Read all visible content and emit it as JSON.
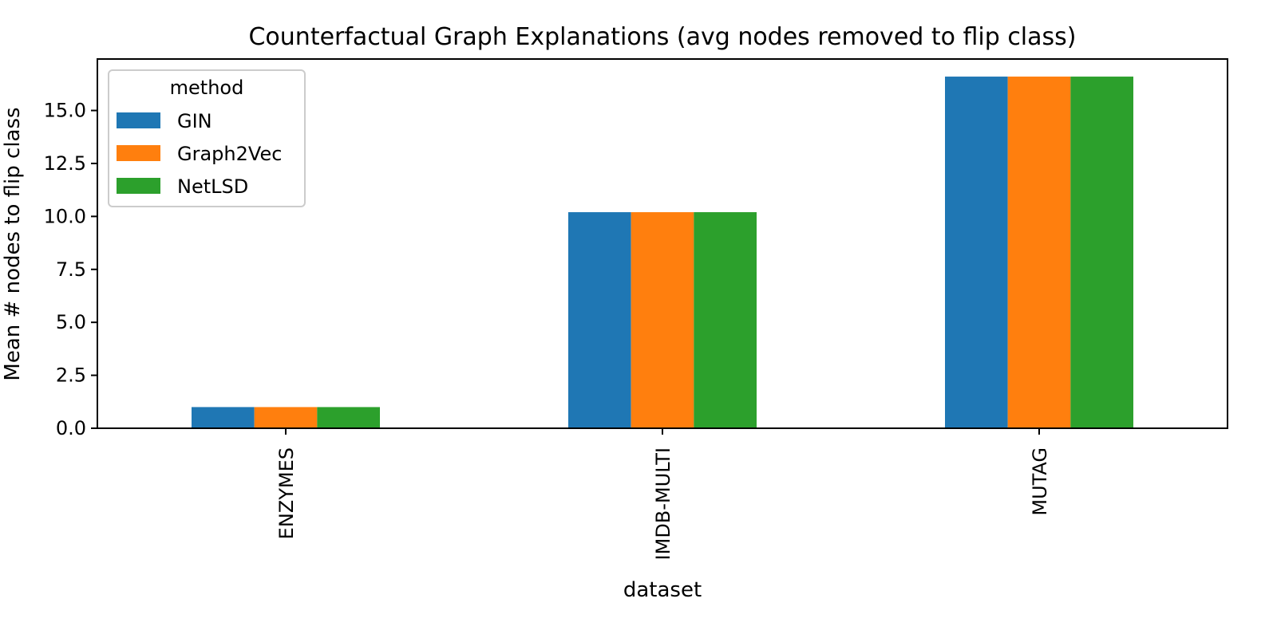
{
  "chart_data": {
    "type": "bar",
    "title": "Counterfactual Graph Explanations (avg nodes removed to flip class)",
    "xlabel": "dataset",
    "ylabel": "Mean # nodes to flip class",
    "categories": [
      "ENZYMES",
      "IMDB-MULTI",
      "MUTAG"
    ],
    "series": [
      {
        "name": "GIN",
        "color": "#1f77b4",
        "values": [
          1.0,
          10.2,
          16.6
        ]
      },
      {
        "name": "Graph2Vec",
        "color": "#ff7f0e",
        "values": [
          1.0,
          10.2,
          16.6
        ]
      },
      {
        "name": "NetLSD",
        "color": "#2ca02c",
        "values": [
          1.0,
          10.2,
          16.6
        ]
      }
    ],
    "ylim": [
      0,
      17.43
    ],
    "yticks": [
      0.0,
      2.5,
      5.0,
      7.5,
      10.0,
      12.5,
      15.0
    ],
    "ytick_labels": [
      "0.0",
      "2.5",
      "5.0",
      "7.5",
      "10.0",
      "12.5",
      "15.0"
    ],
    "legend": {
      "title": "method",
      "position": "top-left"
    },
    "grid": false
  }
}
